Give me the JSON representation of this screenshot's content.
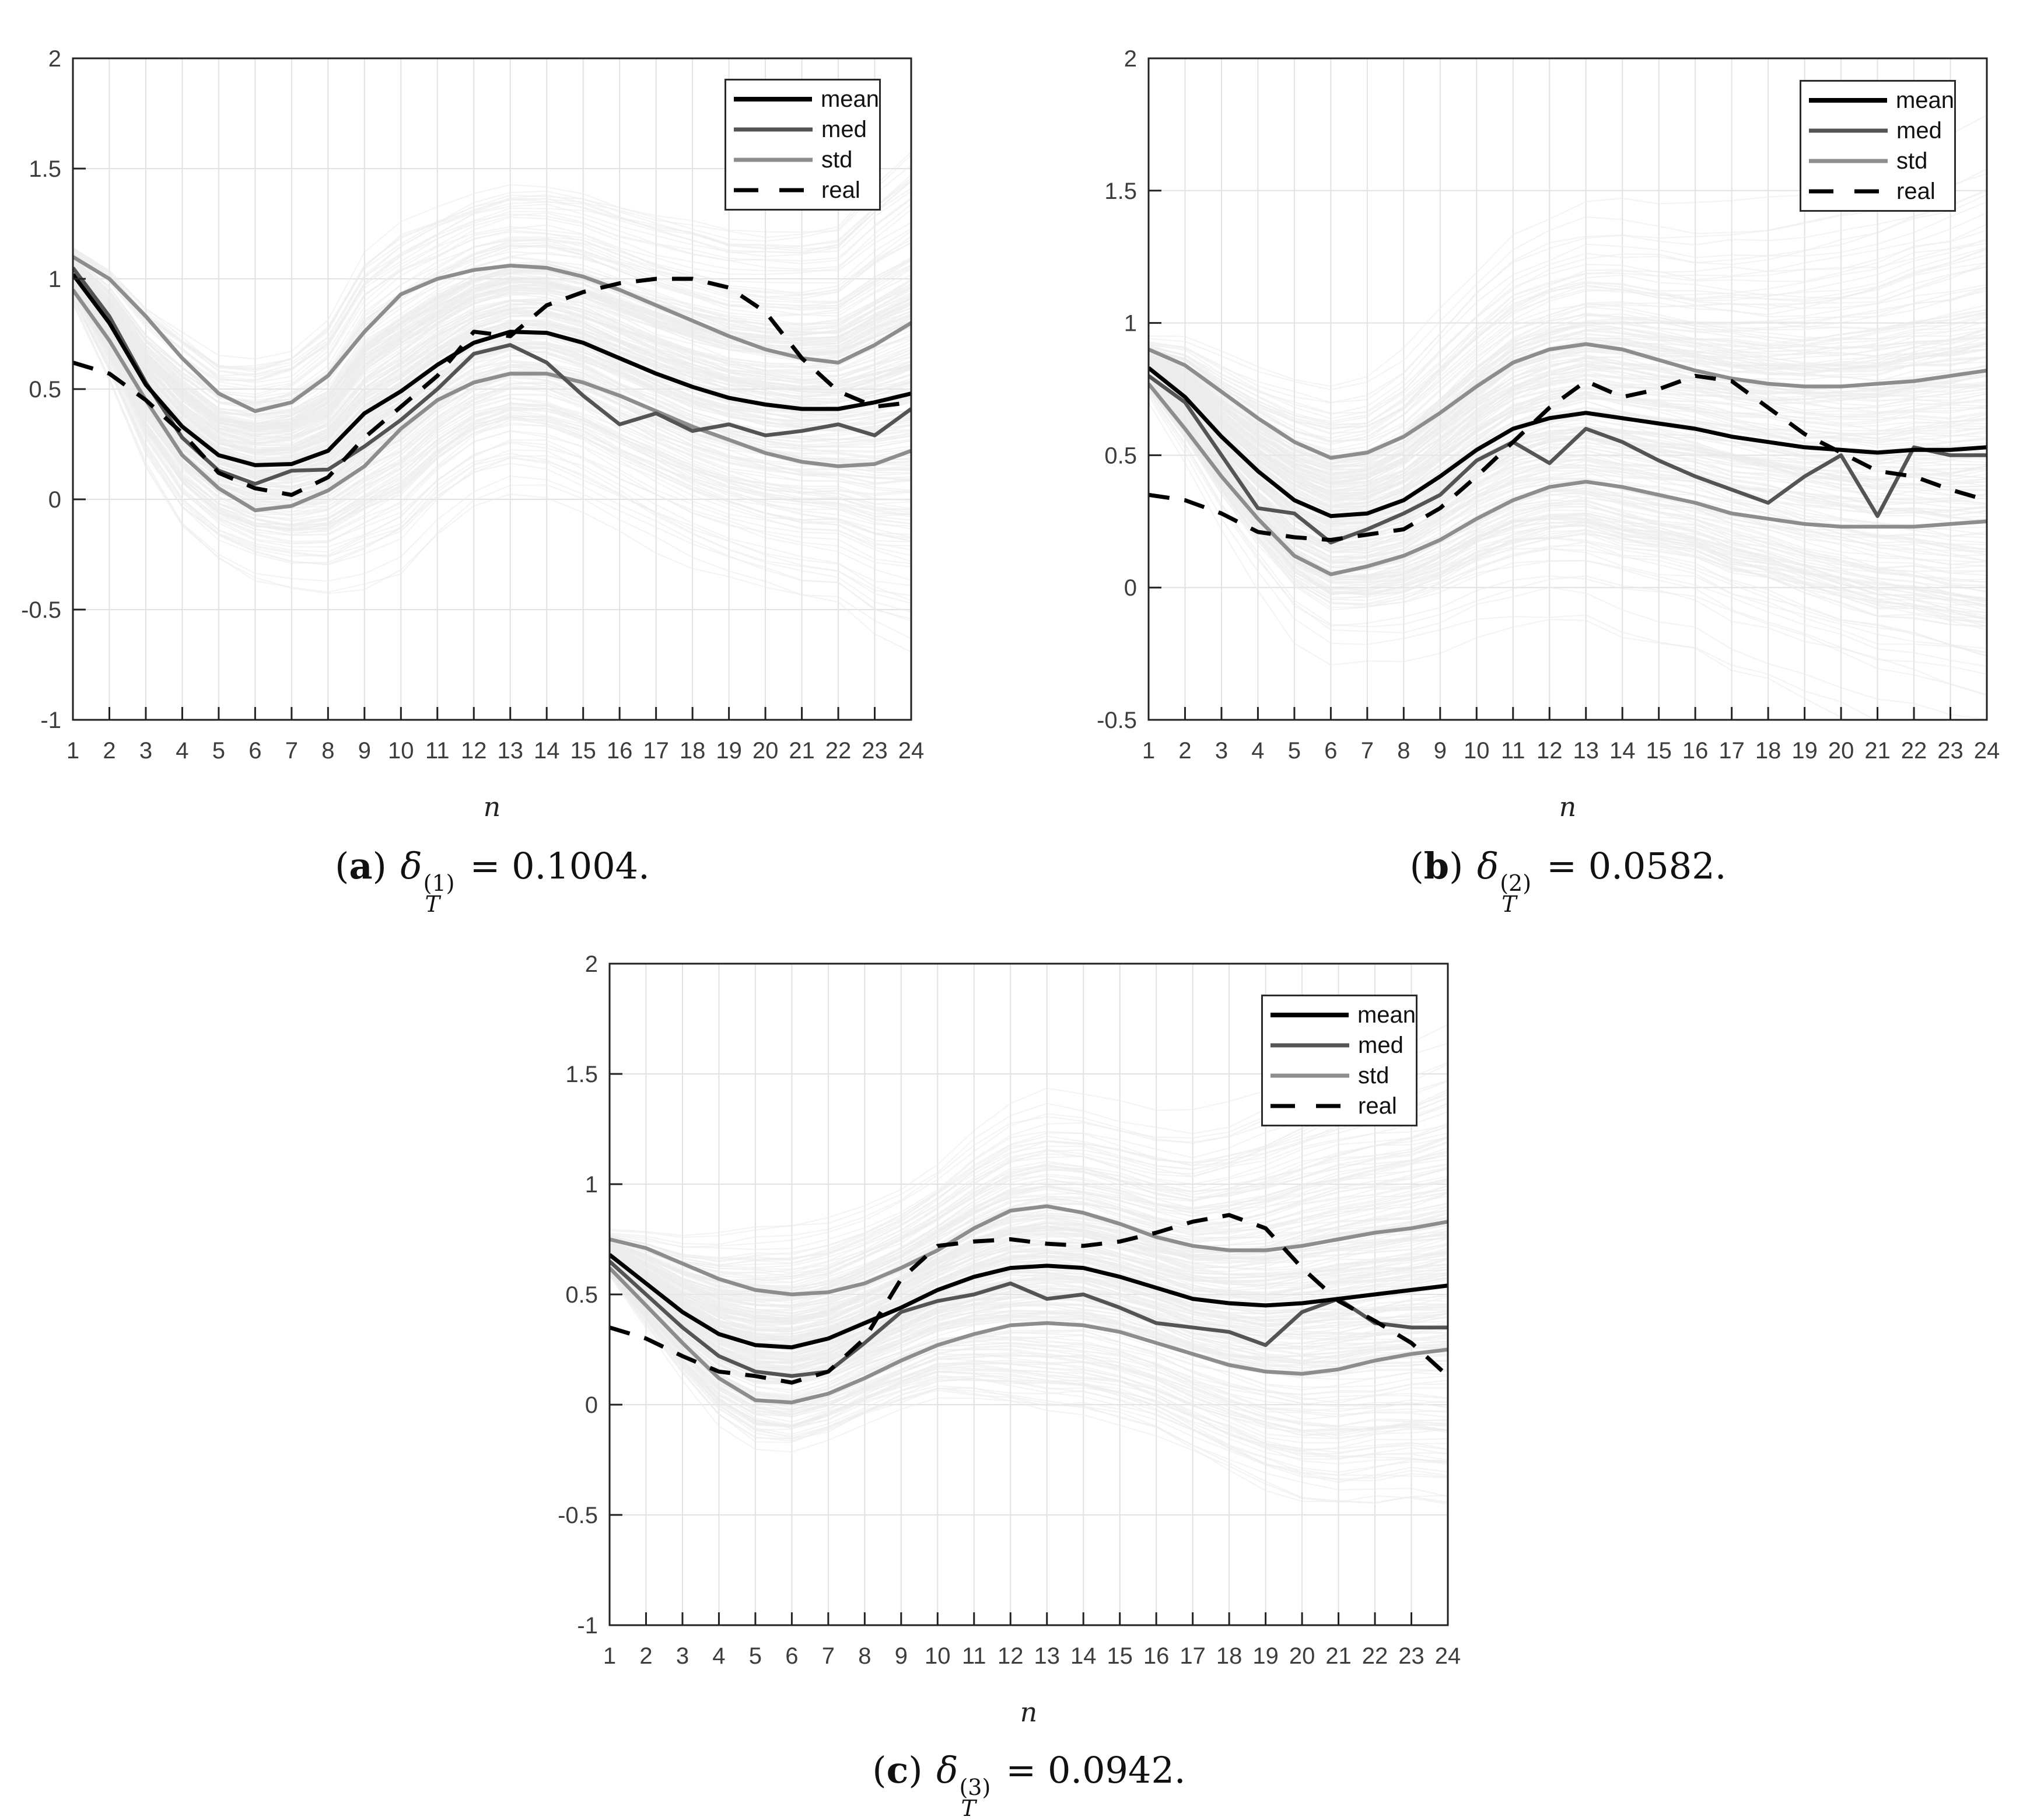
{
  "page": {
    "background": "#ffffff"
  },
  "colors": {
    "mean": "#000000",
    "med": "#545454",
    "std": "#8d8d8d",
    "real": "#000000",
    "cloud": "#eaeaea",
    "grid": "#e2e2e2",
    "axis": "#222222",
    "tick_label": "#3d3d3d"
  },
  "legend": {
    "items": [
      {
        "label": "mean",
        "style": "mean"
      },
      {
        "label": "med",
        "style": "med"
      },
      {
        "label": "std",
        "style": "std"
      },
      {
        "label": "real",
        "style": "real"
      }
    ]
  },
  "charts": [
    {
      "id": "a",
      "caption": {
        "open": "(",
        "letter": "a",
        "close": ")",
        "symbol": "δ",
        "sup": "(1)",
        "sub": "T",
        "value": "= 0.1004."
      },
      "chart_data": {
        "type": "line",
        "x": [
          1,
          2,
          3,
          4,
          5,
          6,
          7,
          8,
          9,
          10,
          11,
          12,
          13,
          14,
          15,
          16,
          17,
          18,
          19,
          20,
          21,
          22,
          23,
          24
        ],
        "xlabel": "n",
        "ylim": [
          -1,
          2
        ],
        "yticks": [
          2,
          1.5,
          1,
          0.5,
          0,
          -0.5,
          -1
        ],
        "grid": true,
        "legend_position": "top-right",
        "ensemble_cloud": true,
        "series": [
          {
            "name": "mean",
            "values": [
              1.02,
              0.8,
              0.52,
              0.33,
              0.2,
              0.155,
              0.16,
              0.22,
              0.39,
              0.49,
              0.61,
              0.71,
              0.76,
              0.755,
              0.71,
              0.64,
              0.57,
              0.51,
              0.46,
              0.43,
              0.41,
              0.41,
              0.44,
              0.48
            ]
          },
          {
            "name": "med",
            "values": [
              1.05,
              0.83,
              0.53,
              0.28,
              0.13,
              0.07,
              0.13,
              0.135,
              0.24,
              0.36,
              0.5,
              0.66,
              0.7,
              0.62,
              0.47,
              0.34,
              0.39,
              0.31,
              0.34,
              0.29,
              0.31,
              0.34,
              0.29,
              0.41
            ]
          },
          {
            "name": "std_upper",
            "values": [
              1.1,
              1.0,
              0.83,
              0.64,
              0.48,
              0.4,
              0.44,
              0.56,
              0.76,
              0.93,
              1.0,
              1.04,
              1.06,
              1.05,
              1.01,
              0.95,
              0.88,
              0.81,
              0.74,
              0.68,
              0.64,
              0.62,
              0.7,
              0.8
            ]
          },
          {
            "name": "std_lower",
            "values": [
              0.95,
              0.72,
              0.45,
              0.2,
              0.05,
              -0.05,
              -0.03,
              0.04,
              0.15,
              0.32,
              0.45,
              0.53,
              0.57,
              0.57,
              0.53,
              0.47,
              0.4,
              0.33,
              0.27,
              0.21,
              0.17,
              0.15,
              0.16,
              0.22
            ]
          },
          {
            "name": "real",
            "values": [
              0.62,
              0.57,
              0.45,
              0.3,
              0.12,
              0.05,
              0.02,
              0.1,
              0.28,
              0.42,
              0.56,
              0.76,
              0.74,
              0.88,
              0.94,
              0.98,
              1.0,
              1.0,
              0.96,
              0.85,
              0.64,
              0.49,
              0.42,
              0.44
            ]
          }
        ]
      }
    },
    {
      "id": "b",
      "caption": {
        "open": "(",
        "letter": "b",
        "close": ")",
        "symbol": "δ",
        "sup": "(2)",
        "sub": "T",
        "value": "= 0.0582."
      },
      "chart_data": {
        "type": "line",
        "x": [
          1,
          2,
          3,
          4,
          5,
          6,
          7,
          8,
          9,
          10,
          11,
          12,
          13,
          14,
          15,
          16,
          17,
          18,
          19,
          20,
          21,
          22,
          23,
          24
        ],
        "xlabel": "n",
        "ylim": [
          -0.5,
          2
        ],
        "yticks": [
          2,
          1.5,
          1,
          0.5,
          0,
          -0.5
        ],
        "grid": true,
        "legend_position": "top-right",
        "ensemble_cloud": true,
        "series": [
          {
            "name": "mean",
            "values": [
              0.83,
              0.72,
              0.57,
              0.44,
              0.33,
              0.27,
              0.28,
              0.33,
              0.42,
              0.52,
              0.6,
              0.64,
              0.66,
              0.64,
              0.62,
              0.6,
              0.57,
              0.55,
              0.53,
              0.52,
              0.51,
              0.52,
              0.52,
              0.53
            ]
          },
          {
            "name": "med",
            "values": [
              0.8,
              0.7,
              0.5,
              0.3,
              0.28,
              0.17,
              0.22,
              0.28,
              0.35,
              0.48,
              0.55,
              0.47,
              0.6,
              0.55,
              0.48,
              0.42,
              0.37,
              0.32,
              0.42,
              0.5,
              0.27,
              0.53,
              0.5,
              0.5
            ]
          },
          {
            "name": "std_upper",
            "values": [
              0.9,
              0.84,
              0.74,
              0.64,
              0.55,
              0.49,
              0.51,
              0.57,
              0.66,
              0.76,
              0.85,
              0.9,
              0.92,
              0.9,
              0.86,
              0.82,
              0.79,
              0.77,
              0.76,
              0.76,
              0.77,
              0.78,
              0.8,
              0.82
            ]
          },
          {
            "name": "std_lower",
            "values": [
              0.77,
              0.6,
              0.42,
              0.26,
              0.12,
              0.05,
              0.08,
              0.12,
              0.18,
              0.26,
              0.33,
              0.38,
              0.4,
              0.38,
              0.35,
              0.32,
              0.28,
              0.26,
              0.24,
              0.23,
              0.23,
              0.23,
              0.24,
              0.25
            ]
          },
          {
            "name": "real",
            "values": [
              0.35,
              0.33,
              0.28,
              0.21,
              0.19,
              0.18,
              0.2,
              0.22,
              0.3,
              0.42,
              0.55,
              0.68,
              0.78,
              0.72,
              0.75,
              0.8,
              0.78,
              0.68,
              0.58,
              0.51,
              0.44,
              0.42,
              0.37,
              0.33
            ]
          }
        ]
      }
    },
    {
      "id": "c",
      "caption": {
        "open": "(",
        "letter": "c",
        "close": ")",
        "symbol": "δ",
        "sup": "(3)",
        "sub": "T",
        "value": "= 0.0942."
      },
      "chart_data": {
        "type": "line",
        "x": [
          1,
          2,
          3,
          4,
          5,
          6,
          7,
          8,
          9,
          10,
          11,
          12,
          13,
          14,
          15,
          16,
          17,
          18,
          19,
          20,
          21,
          22,
          23,
          24
        ],
        "xlabel": "n",
        "ylim": [
          -1,
          2
        ],
        "yticks": [
          2,
          1.5,
          1,
          0.5,
          0,
          -0.5,
          -1
        ],
        "grid": true,
        "legend_position": "top-right",
        "ensemble_cloud": true,
        "series": [
          {
            "name": "mean",
            "values": [
              0.68,
              0.55,
              0.42,
              0.32,
              0.27,
              0.26,
              0.3,
              0.37,
              0.44,
              0.52,
              0.58,
              0.62,
              0.63,
              0.62,
              0.58,
              0.53,
              0.48,
              0.46,
              0.45,
              0.46,
              0.48,
              0.5,
              0.52,
              0.54
            ]
          },
          {
            "name": "med",
            "values": [
              0.65,
              0.5,
              0.35,
              0.22,
              0.15,
              0.13,
              0.15,
              0.28,
              0.42,
              0.47,
              0.5,
              0.55,
              0.48,
              0.5,
              0.44,
              0.37,
              0.35,
              0.33,
              0.27,
              0.42,
              0.48,
              0.37,
              0.35,
              0.35
            ]
          },
          {
            "name": "std_upper",
            "values": [
              0.75,
              0.71,
              0.64,
              0.57,
              0.52,
              0.5,
              0.51,
              0.55,
              0.62,
              0.7,
              0.8,
              0.88,
              0.9,
              0.87,
              0.82,
              0.76,
              0.72,
              0.7,
              0.7,
              0.72,
              0.75,
              0.78,
              0.8,
              0.83
            ]
          },
          {
            "name": "std_lower",
            "values": [
              0.62,
              0.45,
              0.28,
              0.12,
              0.02,
              0.01,
              0.05,
              0.12,
              0.2,
              0.27,
              0.32,
              0.36,
              0.37,
              0.36,
              0.33,
              0.28,
              0.23,
              0.18,
              0.15,
              0.14,
              0.16,
              0.2,
              0.23,
              0.25
            ]
          },
          {
            "name": "real",
            "values": [
              0.35,
              0.3,
              0.22,
              0.15,
              0.13,
              0.1,
              0.15,
              0.3,
              0.57,
              0.72,
              0.74,
              0.75,
              0.73,
              0.72,
              0.74,
              0.78,
              0.83,
              0.86,
              0.8,
              0.62,
              0.47,
              0.38,
              0.28,
              0.13
            ]
          }
        ]
      }
    }
  ]
}
